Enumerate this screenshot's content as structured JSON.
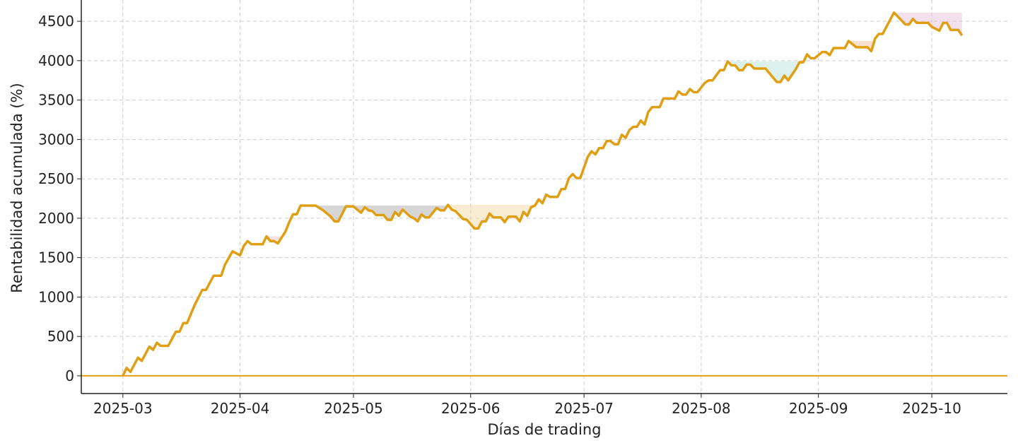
{
  "chart_data": {
    "type": "line",
    "title": "",
    "xlabel": "Días de trading",
    "ylabel": "Rentabilidad acumulada (%)",
    "xlim": [
      "2025-02-18",
      "2025-10-21"
    ],
    "ylim": [
      -225,
      4770
    ],
    "grid": true,
    "x_ticks": [
      "2025-03",
      "2025-04",
      "2025-05",
      "2025-06",
      "2025-07",
      "2025-08",
      "2025-09",
      "2025-10"
    ],
    "y_ticks": [
      "0",
      "500",
      "1000",
      "1500",
      "2000",
      "2500",
      "3000",
      "3500",
      "4000",
      "4500"
    ],
    "line_color": "#E09F12",
    "zero_line_color": "#E09F12",
    "drawdown_colors": [
      "#f2c9c9",
      "#b5b5b5",
      "#f3dcae",
      "#bfe5da",
      "#f4c9a8",
      "#e8c6dc"
    ],
    "dates": [
      "2025-03-01",
      "2025-03-02",
      "2025-03-03",
      "2025-03-05",
      "2025-03-06",
      "2025-03-08",
      "2025-03-09",
      "2025-03-10",
      "2025-03-11",
      "2025-03-13",
      "2025-03-14",
      "2025-03-15",
      "2025-03-16",
      "2025-03-17",
      "2025-03-18",
      "2025-03-20",
      "2025-03-22",
      "2025-03-23",
      "2025-03-25",
      "2025-03-27",
      "2025-03-28",
      "2025-03-30",
      "2025-04-01",
      "2025-04-02",
      "2025-04-03",
      "2025-04-04",
      "2025-04-07",
      "2025-04-08",
      "2025-04-09",
      "2025-04-10",
      "2025-04-11",
      "2025-04-13",
      "2025-04-14",
      "2025-04-15",
      "2025-04-16",
      "2025-04-17",
      "2025-04-21",
      "2025-04-23",
      "2025-04-25",
      "2025-04-26",
      "2025-04-27",
      "2025-04-29",
      "2025-05-01",
      "2025-05-03",
      "2025-05-04",
      "2025-05-05",
      "2025-05-06",
      "2025-05-07",
      "2025-05-09",
      "2025-05-10",
      "2025-05-11",
      "2025-05-12",
      "2025-05-13",
      "2025-05-14",
      "2025-05-16",
      "2025-05-17",
      "2025-05-18",
      "2025-05-19",
      "2025-05-20",
      "2025-05-21",
      "2025-05-23",
      "2025-05-24",
      "2025-05-25",
      "2025-05-26",
      "2025-05-27",
      "2025-05-28",
      "2025-05-30",
      "2025-05-31",
      "2025-06-02",
      "2025-06-03",
      "2025-06-04",
      "2025-06-05",
      "2025-06-06",
      "2025-06-07",
      "2025-06-09",
      "2025-06-10",
      "2025-06-11",
      "2025-06-13",
      "2025-06-14",
      "2025-06-15",
      "2025-06-16",
      "2025-06-17",
      "2025-06-18",
      "2025-06-19",
      "2025-06-20",
      "2025-06-21",
      "2025-06-22",
      "2025-06-24",
      "2025-06-25",
      "2025-06-26",
      "2025-06-27",
      "2025-06-28",
      "2025-06-29",
      "2025-06-30",
      "2025-07-02",
      "2025-07-03",
      "2025-07-04",
      "2025-07-05",
      "2025-07-06",
      "2025-07-07",
      "2025-07-08",
      "2025-07-09",
      "2025-07-10",
      "2025-07-11",
      "2025-07-12",
      "2025-07-13",
      "2025-07-14",
      "2025-07-15",
      "2025-07-16",
      "2025-07-17",
      "2025-07-18",
      "2025-07-19",
      "2025-07-21",
      "2025-07-22",
      "2025-07-25",
      "2025-07-26",
      "2025-07-27",
      "2025-07-28",
      "2025-07-29",
      "2025-07-30",
      "2025-07-31",
      "2025-08-02",
      "2025-08-03",
      "2025-08-04",
      "2025-08-06",
      "2025-08-07",
      "2025-08-08",
      "2025-08-09",
      "2025-08-10",
      "2025-08-11",
      "2025-08-12",
      "2025-08-13",
      "2025-08-14",
      "2025-08-15",
      "2025-08-18",
      "2025-08-21",
      "2025-08-22",
      "2025-08-23",
      "2025-08-24",
      "2025-08-26",
      "2025-08-27",
      "2025-08-28",
      "2025-08-29",
      "2025-08-30",
      "2025-08-31",
      "2025-09-02",
      "2025-09-03",
      "2025-09-04",
      "2025-09-05",
      "2025-09-08",
      "2025-09-09",
      "2025-09-11",
      "2025-09-14",
      "2025-09-15",
      "2025-09-16",
      "2025-09-17",
      "2025-09-18",
      "2025-09-21",
      "2025-09-24",
      "2025-09-25",
      "2025-09-26",
      "2025-09-27",
      "2025-09-30",
      "2025-10-01",
      "2025-10-03",
      "2025-10-04",
      "2025-10-05",
      "2025-10-06",
      "2025-10-08",
      "2025-10-09"
    ],
    "values": [
      0,
      100,
      50,
      230,
      190,
      370,
      330,
      420,
      380,
      380,
      470,
      560,
      560,
      670,
      670,
      900,
      1090,
      1090,
      1270,
      1270,
      1410,
      1580,
      1530,
      1650,
      1710,
      1670,
      1670,
      1770,
      1710,
      1710,
      1680,
      1830,
      1950,
      2050,
      2050,
      2160,
      2160,
      2100,
      2020,
      1960,
      1960,
      2150,
      2150,
      2070,
      2140,
      2100,
      2090,
      2040,
      2040,
      1980,
      1980,
      2080,
      2030,
      2110,
      2020,
      2000,
      1960,
      2050,
      2010,
      2010,
      2130,
      2100,
      2100,
      2170,
      2110,
      2090,
      1990,
      1980,
      1870,
      1870,
      1960,
      1960,
      2060,
      2010,
      2010,
      1950,
      2020,
      2020,
      1960,
      2080,
      2030,
      2140,
      2160,
      2240,
      2190,
      2300,
      2270,
      2270,
      2370,
      2370,
      2510,
      2560,
      2510,
      2510,
      2780,
      2850,
      2810,
      2890,
      2890,
      2980,
      2980,
      2940,
      2940,
      3060,
      3020,
      3120,
      3160,
      3160,
      3240,
      3190,
      3350,
      3410,
      3410,
      3520,
      3520,
      3610,
      3570,
      3570,
      3640,
      3600,
      3600,
      3720,
      3750,
      3750,
      3880,
      3880,
      3990,
      3940,
      3940,
      3880,
      3880,
      3950,
      3950,
      3900,
      3900,
      3730,
      3730,
      3810,
      3750,
      3890,
      3980,
      3980,
      4080,
      4030,
      4030,
      4110,
      4110,
      4070,
      4160,
      4160,
      4250,
      4170,
      4170,
      4120,
      4280,
      4340,
      4340,
      4610,
      4460,
      4460,
      4530,
      4480,
      4480,
      4430,
      4380,
      4480,
      4480,
      4390,
      4390,
      4320
    ]
  }
}
